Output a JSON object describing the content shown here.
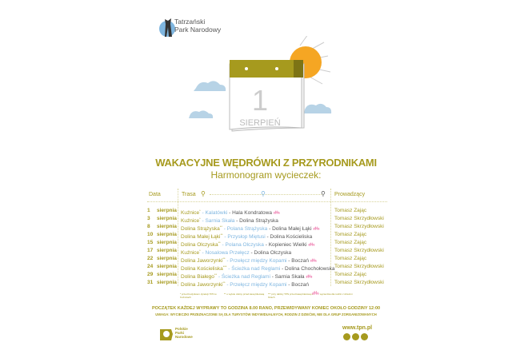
{
  "logo": {
    "line1": "Tatrzański",
    "line2": "Park Narodowy"
  },
  "calendar": {
    "day": "1",
    "month": "SIERPIEŃ"
  },
  "title": "WAKACYJNE WĘDRÓWKI Z PRZYRODNIKAMI",
  "subtitle": "Harmonogram wycieczek:",
  "headers": {
    "date": "Data",
    "route": "Trasa",
    "leader": "Prowadzący"
  },
  "rows": [
    {
      "day": "1",
      "month": "sierpnia",
      "start": "Kuźnice",
      "mark": "*",
      "via": "Kalatówki",
      "end": "Hala Kondratowa",
      "family": true,
      "leader": "Tomasz Zając"
    },
    {
      "day": "3",
      "month": "sierpnia",
      "start": "Kuźnice",
      "mark": "*",
      "via": "Sarnia Skała",
      "end": "Dolina Strążyska",
      "family": false,
      "leader": "Tomasz Skrzydłowski"
    },
    {
      "day": "8",
      "month": "sierpnia",
      "start": "Dolina Strążyska",
      "mark": "**",
      "via": "Polana Strążyska",
      "end": "Dolina Małej Łąki",
      "family": true,
      "leader": "Tomasz Skrzydłowski"
    },
    {
      "day": "10",
      "month": "sierpnia",
      "start": "Dolina Małej Łąki",
      "mark": "**",
      "via": "Przysłop Miętusi",
      "end": "Dolina Kościeliska",
      "family": false,
      "leader": "Tomasz Zając"
    },
    {
      "day": "15",
      "month": "sierpnia",
      "start": "Dolina Olczyska",
      "mark": "**",
      "via": "Polana Olczyska",
      "end": "Kopieniec Wielki",
      "family": true,
      "leader": "Tomasz Zając"
    },
    {
      "day": "17",
      "month": "sierpnia",
      "start": "Kuźnice",
      "mark": "*",
      "via": "Nosalowa Przełęcz",
      "end": "Dolina Olczyska",
      "family": false,
      "leader": "Tomasz Skrzydłowski"
    },
    {
      "day": "22",
      "month": "sierpnia",
      "start": "Dolina Jaworzynki",
      "mark": "**",
      "via": "Przełęcz między Kopami",
      "end": "Boczań",
      "family": true,
      "leader": "Tomasz Zając"
    },
    {
      "day": "24",
      "month": "sierpnia",
      "start": "Dolina Kościeliska",
      "mark": "***",
      "via": "Ścieżka nad Reglami",
      "end": "Dolina Chochołowska",
      "family": false,
      "leader": "Tomasz Skrzydłowski"
    },
    {
      "day": "29",
      "month": "sierpnia",
      "start": "Dolina Białego",
      "mark": "**",
      "via": "Ścieżka nad Reglami",
      "end": "Sarnia Skała",
      "family": true,
      "leader": "Tomasz Zając"
    },
    {
      "day": "31",
      "month": "sierpnia",
      "start": "Dolina Jaworzynki",
      "mark": "**",
      "via": "Przełęcz między Kopami",
      "end": "Boczań",
      "family": false,
      "leader": "Tomasz Skrzydłowski"
    }
  ],
  "legend": [
    {
      "mark": "*",
      "text": "przed budynkiem dyrekcji TPN w Kuźnicach"
    },
    {
      "mark": "**",
      "text": "u wylotu doliny przed kasą biletową"
    },
    {
      "mark": "***",
      "text": "przy tablicy TPN przed kasą biletową w Kirach"
    },
    {
      "mark": "family-icon",
      "text": "wycieczka dla rodzin z dziećmi"
    }
  ],
  "note1": "POCZĄTEK KAŻDEJ WYPRAWY TO GODZINA 8.00 RANO, PRZEWIDYWANY KONIEC OKOŁO GODZINY 12:00",
  "note2": "UWAGA: WYCIECZKI PRZEZNACZONE SĄ DLA TURYSTÓW INDYWIDUALNYCH, RODZIN Z DZIEĆMI, NIE DLA GRUP ZORGANIZOWANYCH",
  "footer": {
    "ppn_line1": "Polskie",
    "ppn_line2": "Parki",
    "ppn_line3": "Narodowe",
    "url": "www.tpn.pl",
    "social": [
      "twitter-icon",
      "instagram-icon",
      "facebook-icon"
    ]
  },
  "colors": {
    "olive": "#a69a1e",
    "blue": "#7fb6e0",
    "pink": "#f08ab8",
    "sun": "#f5a623"
  }
}
